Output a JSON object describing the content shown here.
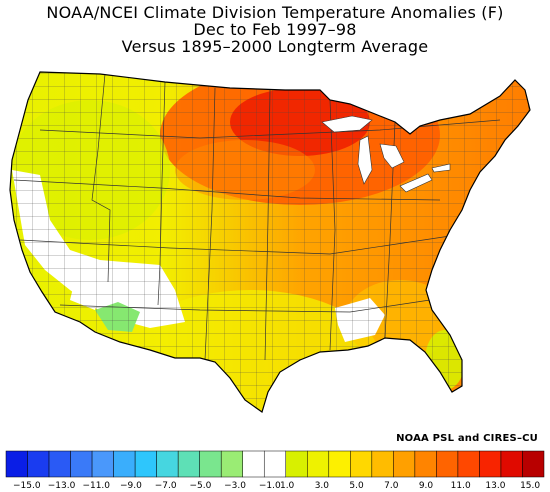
{
  "title": {
    "line1": "NOAA/NCEI Climate Division Temperature Anomalies (F)",
    "line2": "Dec to Feb 1997–98",
    "line3": "Versus 1895–2000 Longterm Average"
  },
  "credit": "NOAA PSL and CIRES–CU",
  "legend": {
    "colors": [
      "#0a1ee6",
      "#1a3cf0",
      "#2a5af5",
      "#3a7af8",
      "#4a98fb",
      "#3aaefc",
      "#2ec6fc",
      "#46d6e0",
      "#5ee0b6",
      "#7ae68e",
      "#9aec74",
      "#ffffff",
      "#ffffff",
      "#d8f000",
      "#eef200",
      "#fdf000",
      "#ffd800",
      "#ffbc00",
      "#ffa000",
      "#ff8400",
      "#ff6400",
      "#ff4800",
      "#f82400",
      "#e00a00",
      "#b80000"
    ],
    "labels": [
      "−15.0",
      "−13.0",
      "−11.0",
      "−9.0",
      "−7.0",
      "−5.0",
      "−3.0",
      "−1.0",
      "1.0",
      "3.0",
      "5.0",
      "7.0",
      "9.0",
      "11.0",
      "13.0",
      "15.0"
    ]
  }
}
